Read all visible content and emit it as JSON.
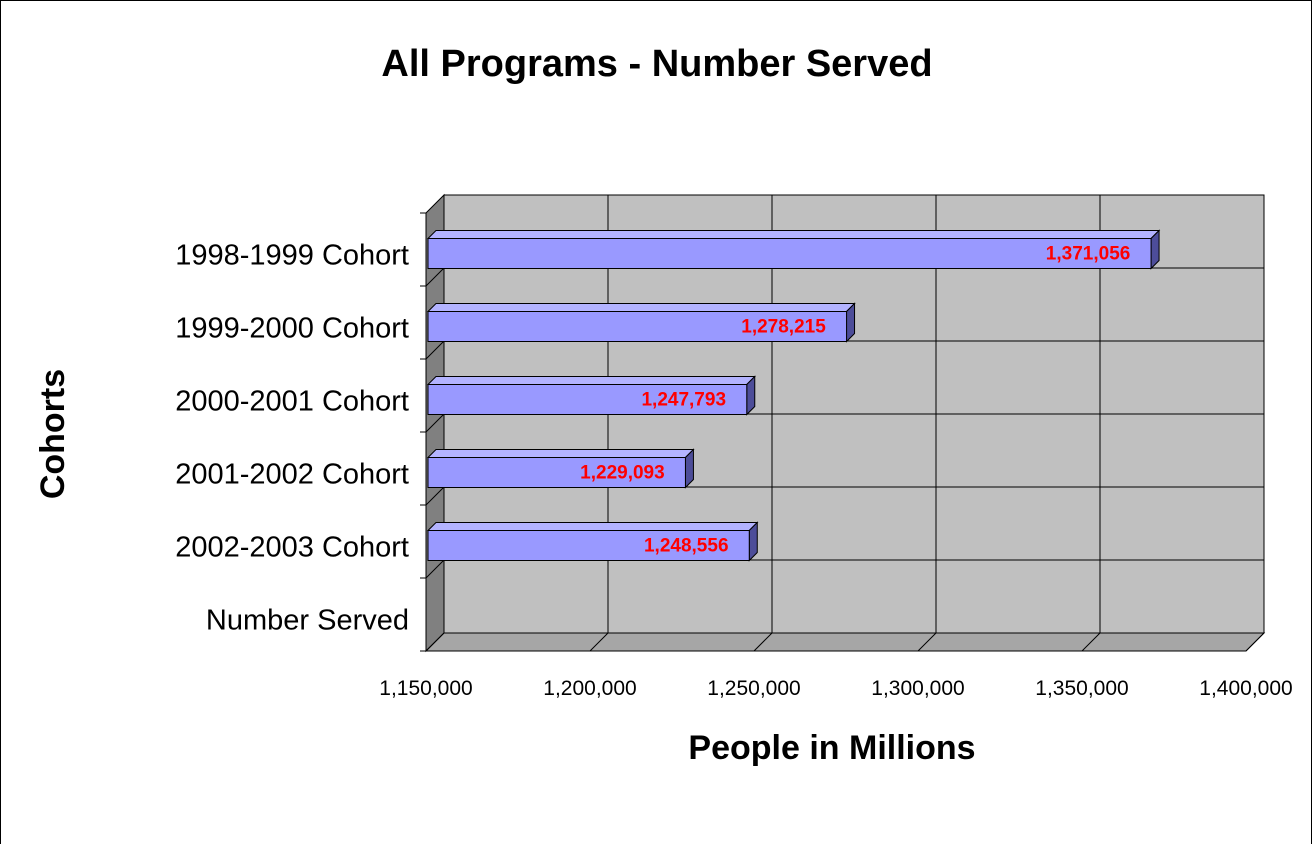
{
  "chart_data": {
    "type": "bar",
    "orientation": "horizontal",
    "style": "3d",
    "title": "All Programs - Number Served",
    "xlabel": "People in Millions",
    "ylabel": "Cohorts",
    "categories": [
      "1998-1999 Cohort",
      "1999-2000 Cohort",
      "2000-2001 Cohort",
      "2001-2002 Cohort",
      "2002-2003 Cohort",
      "Number Served"
    ],
    "values": [
      1371056,
      1278215,
      1247793,
      1229093,
      1248556,
      null
    ],
    "data_labels": [
      "1,371,056",
      "1,278,215",
      "1,247,793",
      "1,229,093",
      "1,248,556",
      ""
    ],
    "xlim": [
      1150000,
      1400000
    ],
    "x_ticks": [
      1150000,
      1200000,
      1250000,
      1300000,
      1350000,
      1400000
    ],
    "x_tick_labels": [
      "1,150,000",
      "1,200,000",
      "1,250,000",
      "1,300,000",
      "1,350,000",
      "1,400,000"
    ],
    "grid": true,
    "legend": "none",
    "colors": {
      "bar_front": "#9999ff",
      "bar_top": "#b3b3ff",
      "bar_side": "#4d4d99",
      "plot_wall": "#c0c0c0",
      "plot_floor": "#a6a6a6",
      "plot_side_wall": "#808080",
      "data_label": "#ff0000"
    }
  }
}
